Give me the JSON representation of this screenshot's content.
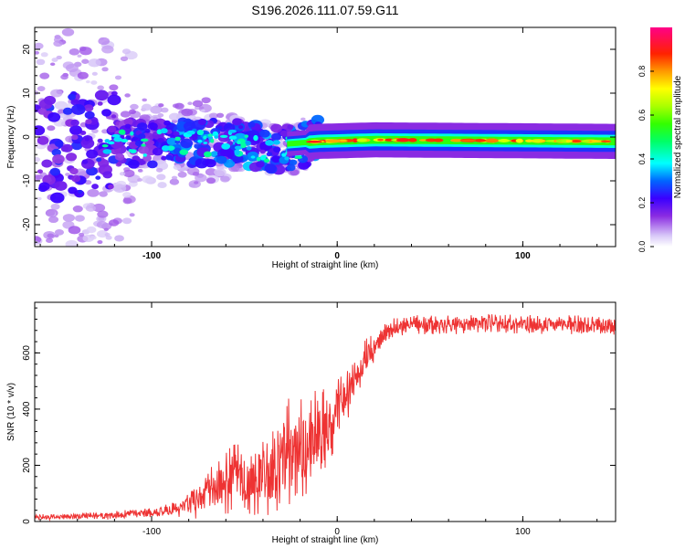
{
  "title": "S196.2026.111.07.59.G11",
  "chart_data": [
    {
      "type": "heatmap",
      "title": "S196.2026.111.07.59.G11",
      "xlabel": "Height of straight line (km)",
      "ylabel": "Frequency (Hz)",
      "xlim": [
        -163,
        150
      ],
      "ylim": [
        -25,
        25
      ],
      "xticks": [
        -100,
        0,
        100
      ],
      "yticks": [
        -20,
        -10,
        0,
        10,
        20
      ],
      "colorbar": {
        "label": "Normalized spectral amplitude",
        "range": [
          0,
          1
        ],
        "ticks": [
          0.0,
          0.2,
          0.4,
          0.6,
          0.8
        ],
        "tick_labels": [
          "0.0",
          "0.2",
          "0.4",
          "0.6",
          "0.8"
        ]
      },
      "features": {
        "noise_region_x": [
          -163,
          -15
        ],
        "signal_line_start_x": -15,
        "signal_center_freq_hz": -1,
        "mean_frequency_trend": [
          [
            -163,
            -2
          ],
          [
            -60,
            -1
          ],
          [
            -30,
            -3
          ],
          [
            -10,
            -1
          ],
          [
            20,
            0
          ],
          [
            150,
            -1
          ]
        ]
      }
    },
    {
      "type": "line",
      "xlabel": "Height of straight line (km)",
      "ylabel": "SNR (10 * v/v)",
      "xlim": [
        -163,
        150
      ],
      "ylim": [
        0,
        780
      ],
      "xticks": [
        -100,
        0,
        100
      ],
      "yticks": [
        0,
        200,
        400,
        600
      ],
      "series": [
        {
          "name": "SNR",
          "color": "#ee3333",
          "envelope_x": [
            -163,
            -140,
            -120,
            -100,
            -85,
            -75,
            -65,
            -55,
            -45,
            -35,
            -25,
            -15,
            -10,
            -5,
            0,
            5,
            10,
            15,
            20,
            25,
            30,
            40,
            60,
            80,
            100,
            120,
            150
          ],
          "envelope_mean": [
            15,
            18,
            22,
            30,
            45,
            70,
            120,
            150,
            140,
            170,
            250,
            270,
            310,
            350,
            410,
            450,
            520,
            580,
            620,
            660,
            690,
            700,
            700,
            705,
            700,
            700,
            700
          ],
          "envelope_amplitude": [
            10,
            12,
            15,
            20,
            30,
            60,
            100,
            130,
            120,
            150,
            230,
            200,
            180,
            160,
            120,
            100,
            90,
            70,
            50,
            40,
            35,
            35,
            35,
            35,
            35,
            35,
            35
          ]
        }
      ]
    }
  ]
}
